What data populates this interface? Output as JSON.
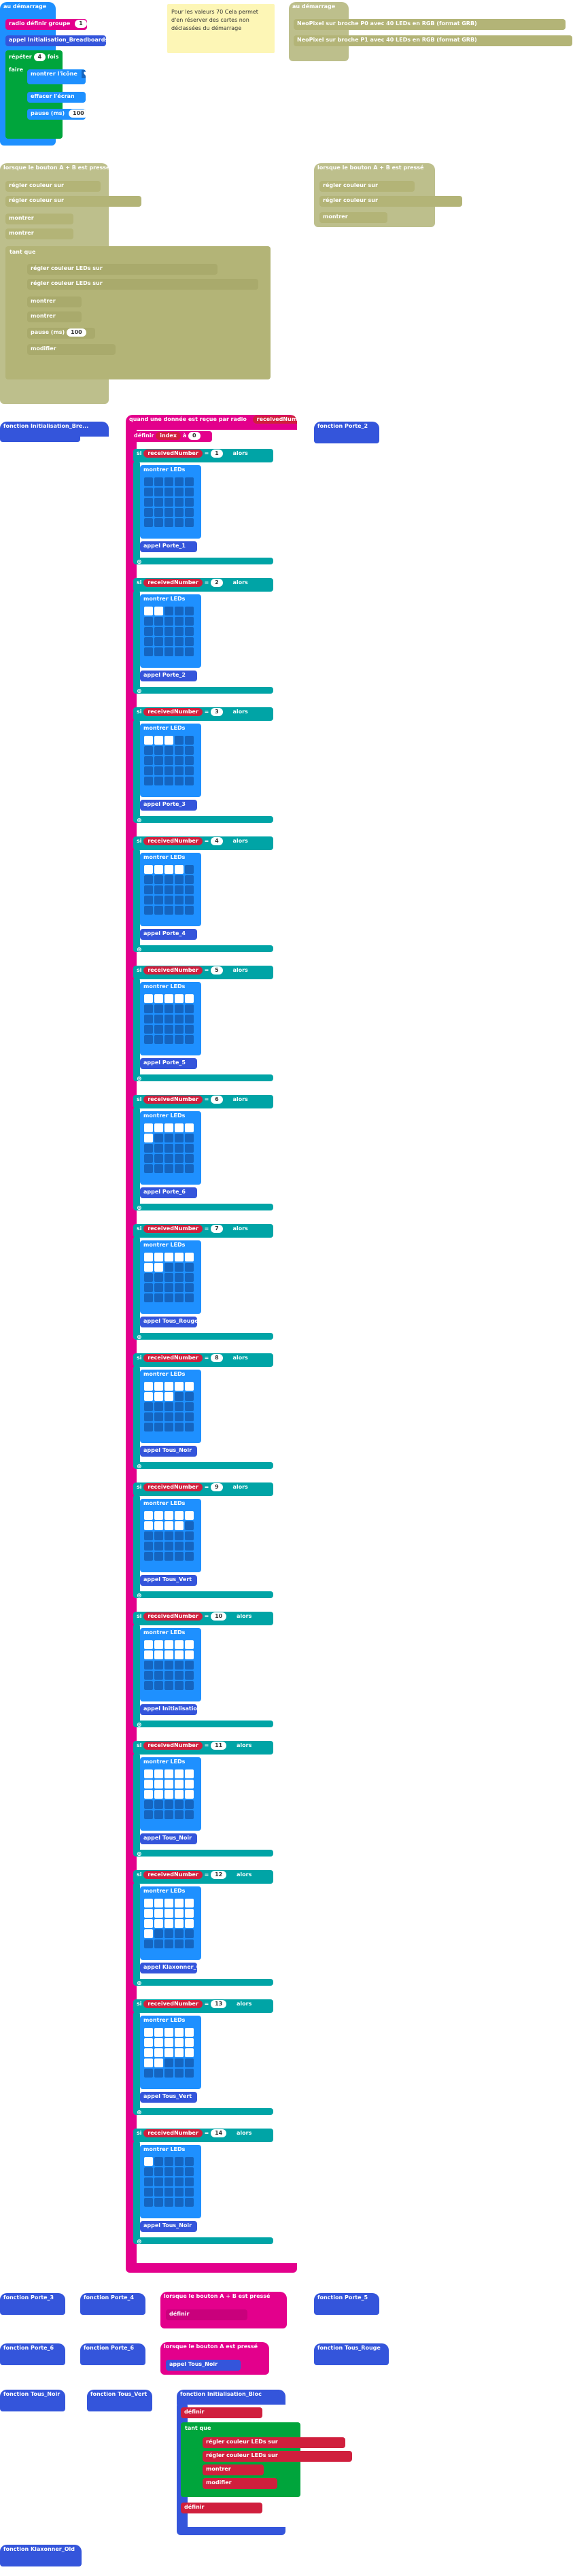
{
  "labels": {
    "on_start": "au démarrage",
    "set_group": "radio définir groupe",
    "group_value": "1",
    "call_init_tres": "appel Initialisation_Breadboards_Robot",
    "repeat": "répéter",
    "repeat_count": "4",
    "times": "fois",
    "show_icon": "montrer l'icône",
    "clear_screen": "effacer l'écran",
    "pause": "pause (ms)",
    "pause_val": "100",
    "note": "Pour les valeurs 70 Cela permet d'en réserver des cartes non déclassées du démarrage",
    "on_start2": "au démarrage",
    "set_text": "définir",
    "strip": "strip",
    "to": "à",
    "neopixel_line1": "NeoPixel sur broche P0 avec 40 LEDs en RGB (format GRB)",
    "neopixel_line2": "NeoPixel sur broche P1 avec 40 LEDs en RGB (format GRB)",
    "btn_a_pressed": "lorsque le bouton A est pressé",
    "btn_ab_pressed": "lorsque le bouton A + B est pressé",
    "btn_b_pressed": "lorsque le bouton B est pressé",
    "set_color": "régler couleur sur",
    "strip_val": "strip",
    "color": "rouge",
    "show": "montrer",
    "show_strip": "strip",
    "for_each": "tant que",
    "index_label": "index",
    "show_leds": "montrer LEDs",
    "func_init": "fonction Initialisation_Bre...",
    "func_porte2": "fonction Porte_2",
    "on_radio": "quand une donnée est reçue par radio",
    "received_number": "receivedNumber",
    "set_index": "définir",
    "index": "index",
    "index_val": "0",
    "if": "si",
    "then": "alors",
    "eq": "=",
    "call": "appel",
    "porte1": "Porte_1",
    "porte2": "Porte_2",
    "porte3": "Porte_3",
    "porte4": "Porte_4",
    "porte5": "Porte_5",
    "porte6": "Porte_6",
    "rouge_call": "Tous_Rouge",
    "vert_call": "Tous_Vert",
    "tous_noir": "Tous_Noir",
    "init_call": "Initialisation_Bloc",
    "klaxon": "Klaxonner_Old",
    "func_porte3": "fonction Porte_3",
    "func_porte4": "fonction Porte_4",
    "func_porte5": "fonction Porte_5",
    "func_porte6": "fonction Porte_6",
    "func_tous_noir": "fonction Tous_Noir",
    "func_tous_vert": "fonction Tous_Vert",
    "func_tous_rouge": "fonction Tous_Rouge",
    "func_init_bloc": "fonction Initialisation_Bloc",
    "func_klaxon": "fonction Klaxonner_Old",
    "while": "tant que",
    "do": "faire",
    "change_index": "modifier",
    "by": "de",
    "set_pixel": "régler couleur LEDs sur",
    "pixel_color": "rouge",
    "at": "à",
    "hue": "bleu",
    "dots": "●●●"
  },
  "radio_values": [
    "1",
    "2",
    "3",
    "4",
    "5",
    "6",
    "7",
    "8",
    "9",
    "10",
    "11",
    "12",
    "13",
    "14"
  ],
  "leds": [
    [
      0,
      0,
      0,
      0,
      0,
      0,
      0,
      0,
      0,
      0,
      0,
      0,
      0,
      0,
      0,
      0,
      0,
      0,
      0,
      0,
      0,
      0,
      0,
      0,
      0
    ],
    [
      1,
      1,
      0,
      0,
      0,
      0,
      0,
      0,
      0,
      0,
      0,
      0,
      0,
      0,
      0,
      0,
      0,
      0,
      0,
      0,
      0,
      0,
      0,
      0,
      0
    ],
    [
      1,
      1,
      1,
      0,
      0,
      0,
      0,
      0,
      0,
      0,
      0,
      0,
      0,
      0,
      0,
      0,
      0,
      0,
      0,
      0,
      0,
      0,
      0,
      0,
      0
    ],
    [
      1,
      1,
      1,
      1,
      0,
      0,
      0,
      0,
      0,
      0,
      0,
      0,
      0,
      0,
      0,
      0,
      0,
      0,
      0,
      0,
      0,
      0,
      0,
      0,
      0
    ],
    [
      1,
      1,
      1,
      1,
      1,
      0,
      0,
      0,
      0,
      0,
      0,
      0,
      0,
      0,
      0,
      0,
      0,
      0,
      0,
      0,
      0,
      0,
      0,
      0,
      0
    ],
    [
      1,
      1,
      1,
      1,
      1,
      1,
      0,
      0,
      0,
      0,
      0,
      0,
      0,
      0,
      0,
      0,
      0,
      0,
      0,
      0,
      0,
      0,
      0,
      0,
      0
    ],
    [
      1,
      1,
      1,
      1,
      1,
      1,
      1,
      0,
      0,
      0,
      0,
      0,
      0,
      0,
      0,
      0,
      0,
      0,
      0,
      0,
      0,
      0,
      0,
      0,
      0
    ],
    [
      1,
      1,
      1,
      1,
      1,
      1,
      1,
      1,
      0,
      0,
      0,
      0,
      0,
      0,
      0,
      0,
      0,
      0,
      0,
      0,
      0,
      0,
      0,
      0,
      0
    ],
    [
      1,
      1,
      1,
      1,
      1,
      1,
      1,
      1,
      1,
      0,
      0,
      0,
      0,
      0,
      0,
      0,
      0,
      0,
      0,
      0,
      0,
      0,
      0,
      0,
      0
    ],
    [
      1,
      1,
      1,
      1,
      1,
      1,
      1,
      1,
      1,
      1,
      0,
      0,
      0,
      0,
      0,
      0,
      0,
      0,
      0,
      0,
      0,
      0,
      0,
      0,
      0
    ],
    [
      1,
      1,
      1,
      1,
      1,
      1,
      1,
      1,
      1,
      1,
      1,
      1,
      1,
      1,
      1,
      0,
      0,
      0,
      0,
      0,
      0,
      0,
      0,
      0,
      0
    ],
    [
      1,
      1,
      1,
      1,
      1,
      1,
      1,
      1,
      1,
      1,
      1,
      1,
      1,
      1,
      1,
      1,
      0,
      0,
      0,
      0,
      0,
      0,
      0,
      0,
      0
    ],
    [
      1,
      1,
      1,
      1,
      1,
      1,
      1,
      1,
      1,
      1,
      1,
      1,
      1,
      1,
      1,
      1,
      1,
      0,
      0,
      0,
      0,
      0,
      0,
      0,
      0
    ],
    [
      1,
      0,
      0,
      0,
      0,
      0,
      0,
      0,
      0,
      0,
      0,
      0,
      0,
      0,
      0,
      0,
      0,
      0,
      0,
      0,
      0,
      0,
      0,
      0,
      0
    ]
  ],
  "calls": [
    "Porte_1",
    "Porte_2",
    "Porte_3",
    "Porte_4",
    "Porte_5",
    "Porte_6",
    "Tous_Rouge",
    "Tous_Noir",
    "Tous_Vert",
    "Initialisation_Bloc",
    "Tous_Noir",
    "Klaxonner_Old",
    "Tous_Vert",
    "Tous_Noir"
  ]
}
